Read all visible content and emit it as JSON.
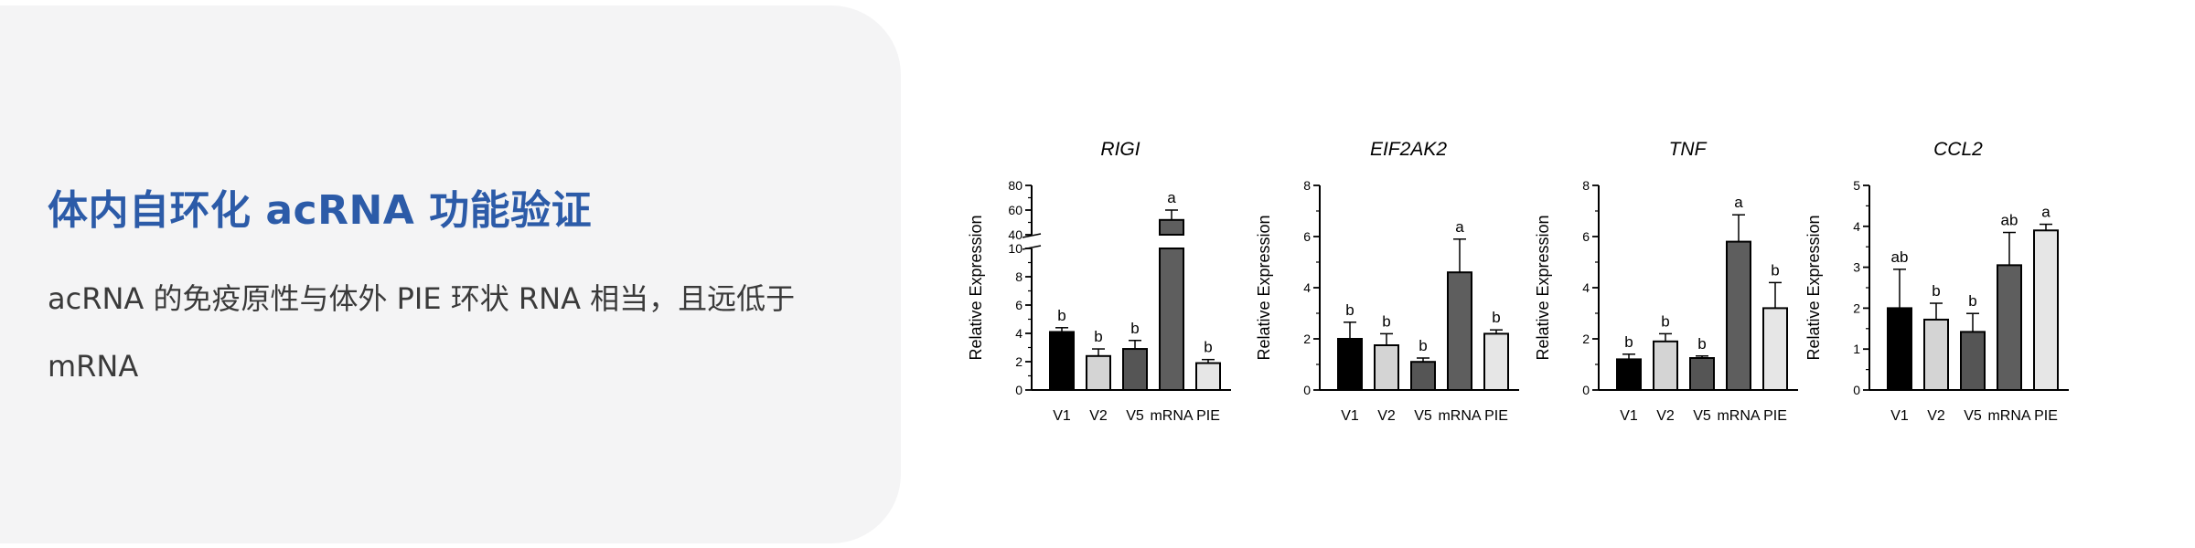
{
  "panel": {
    "title": "体内自环化 acRNA 功能验证",
    "description": "acRNA 的免疫原性与体外 PIE 环状 RNA 相当，且远低于 mRNA"
  },
  "colors": {
    "title": "#2c5ba8",
    "text": "#3a3a3a",
    "panel_bg": "#f4f4f5",
    "bar_V1": "#000000",
    "bar_V2": "#d4d4d4",
    "bar_V5": "#555555",
    "bar_mRNA": "#5e5e5e",
    "bar_PIE": "#e6e6e6"
  },
  "chart_data": [
    {
      "type": "bar",
      "title": "RIGI",
      "ylabel": "Relative Expression",
      "categories": [
        "V1",
        "V2",
        "V5",
        "mRNA",
        "PIE"
      ],
      "values": [
        4.1,
        2.4,
        2.9,
        52,
        1.9
      ],
      "errors": [
        0.3,
        0.5,
        0.6,
        8,
        0.25
      ],
      "letters": [
        "b",
        "b",
        "b",
        "a",
        "b"
      ],
      "broken_axis": true,
      "ylim_lower": [
        0,
        10
      ],
      "yticks_lower": [
        "0",
        "2",
        "4",
        "6",
        "8",
        "10"
      ],
      "ylim_upper": [
        40,
        80
      ],
      "yticks_upper": [
        "40",
        "60",
        "80"
      ]
    },
    {
      "type": "bar",
      "title": "EIF2AK2",
      "ylabel": "Relative Expression",
      "categories": [
        "V1",
        "V2",
        "V5",
        "mRNA",
        "PIE"
      ],
      "values": [
        2.0,
        1.75,
        1.1,
        4.6,
        2.2
      ],
      "errors": [
        0.65,
        0.45,
        0.15,
        1.3,
        0.15
      ],
      "letters": [
        "b",
        "b",
        "b",
        "a",
        "b"
      ],
      "ylim": [
        0,
        8
      ],
      "yticks": [
        "0",
        "2",
        "4",
        "6",
        "8"
      ]
    },
    {
      "type": "bar",
      "title": "TNF",
      "ylabel": "Relative Expression",
      "categories": [
        "V1",
        "V2",
        "V5",
        "mRNA",
        "PIE"
      ],
      "values": [
        1.2,
        1.9,
        1.25,
        5.8,
        3.2
      ],
      "errors": [
        0.2,
        0.3,
        0.08,
        1.05,
        1.0
      ],
      "letters": [
        "b",
        "b",
        "b",
        "a",
        "b"
      ],
      "ylim": [
        0,
        8
      ],
      "yticks": [
        "0",
        "2",
        "4",
        "6",
        "8"
      ]
    },
    {
      "type": "bar",
      "title": "CCL2",
      "ylabel": "Relative Expression",
      "categories": [
        "V1",
        "V2",
        "V5",
        "mRNA",
        "PIE"
      ],
      "values": [
        2.0,
        1.72,
        1.42,
        3.05,
        3.9
      ],
      "errors": [
        0.95,
        0.4,
        0.45,
        0.8,
        0.15
      ],
      "letters": [
        "ab",
        "b",
        "b",
        "ab",
        "a"
      ],
      "ylim": [
        0,
        5
      ],
      "yticks": [
        "0",
        "1",
        "2",
        "3",
        "4",
        "5"
      ]
    }
  ]
}
